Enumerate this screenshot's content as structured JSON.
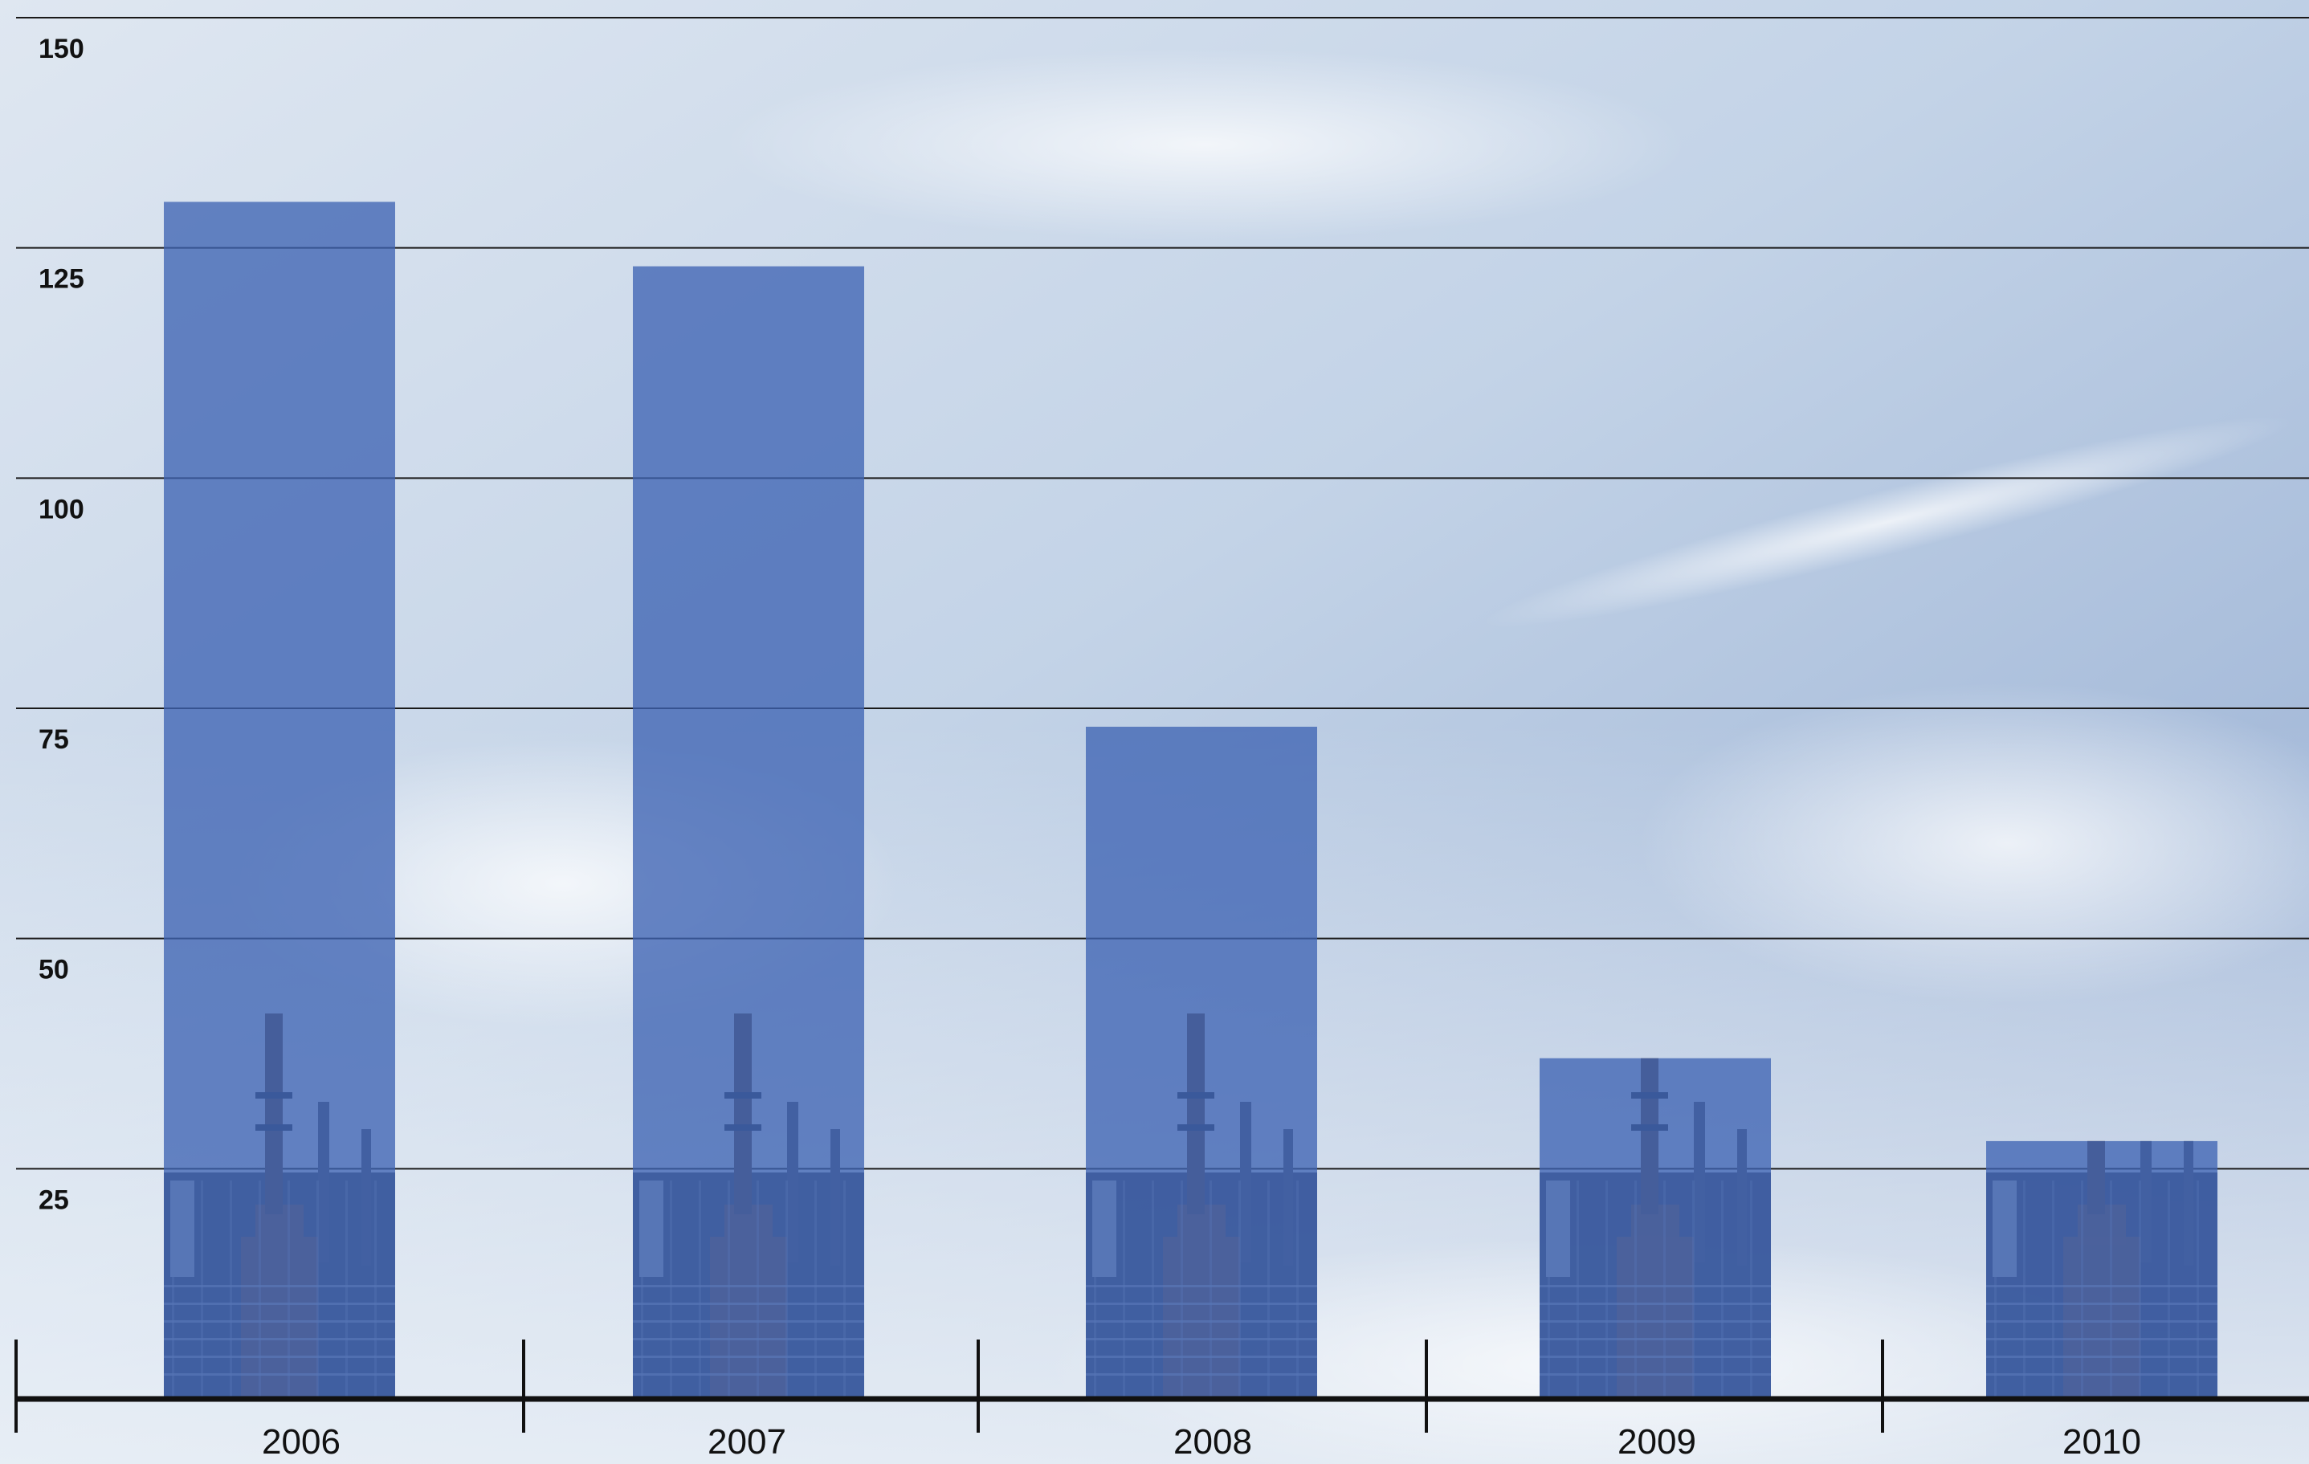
{
  "chart_data": {
    "type": "bar",
    "categories": [
      "2006",
      "2007",
      "2008",
      "2009",
      "2010"
    ],
    "values": [
      130,
      123,
      73,
      37,
      28
    ],
    "title": "",
    "xlabel": "",
    "ylabel": "",
    "ylim": [
      0,
      150
    ],
    "yticks": [
      "25",
      "50",
      "75",
      "100",
      "125",
      "150"
    ],
    "grid": true,
    "legend": "none",
    "colors": {
      "bar": "#3f64b4",
      "sky_top": "#9fb5d6",
      "sky_bottom": "#e6eef6",
      "grid": "#1a1a1a",
      "axis": "#111111",
      "refinery_dark": "#2b3346",
      "refinery_rust": "#7a5a4a"
    },
    "background": "sky-with-refinery-photo"
  }
}
